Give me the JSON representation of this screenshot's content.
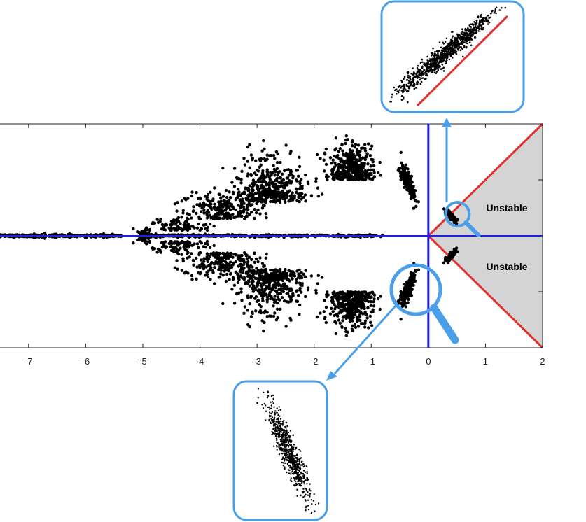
{
  "chart_data": {
    "type": "scatter",
    "title": "",
    "xlabel": "",
    "ylabel": "",
    "xlim": [
      -7.5,
      2
    ],
    "ylim": [
      -2,
      2
    ],
    "x_ticks": [
      -7,
      -6,
      -5,
      -4,
      -3,
      -2,
      -1,
      0,
      1,
      2
    ],
    "x_tick_labels": [
      "-7",
      "-6",
      "-5",
      "-4",
      "-3",
      "-2",
      "-1",
      "0",
      "1",
      "2"
    ],
    "grid": false,
    "annotations": [
      {
        "text": "Unstable",
        "x": 1.55,
        "y": 0.5
      },
      {
        "text": "Unstable",
        "x": 1.55,
        "y": -0.55
      }
    ],
    "unstable_region": {
      "boundary": "|Im| <= Re",
      "x_range": [
        0,
        2
      ],
      "fill_color": "#d4d4d4",
      "edge_color": "#e03030"
    },
    "reference_lines": {
      "color": "#2020e0",
      "vertical_x": 0,
      "horizontal_y": 0
    },
    "clusters": [
      {
        "cx": -7.15,
        "cy": 0,
        "sx": 0.35,
        "sy": 0.0,
        "n": 160,
        "shape": "line"
      },
      {
        "cx": -6.0,
        "cy": 0,
        "sx": 0.55,
        "sy": 0.0,
        "n": 120,
        "shape": "line"
      },
      {
        "cx": -4.5,
        "cy": 0,
        "sx": 0.55,
        "sy": 0.0,
        "n": 140,
        "shape": "line"
      },
      {
        "cx": -3.2,
        "cy": 0,
        "sx": 0.9,
        "sy": 0.0,
        "n": 160,
        "shape": "line"
      },
      {
        "cx": -1.6,
        "cy": 0,
        "sx": 0.8,
        "sy": 0.0,
        "n": 120,
        "shape": "line"
      },
      {
        "cx": -6.2,
        "cy": 0,
        "sx": 0.6,
        "sy": 0.02,
        "n": 30,
        "shape": "blob"
      },
      {
        "cx": -5.0,
        "cy": 0,
        "sx": 0.06,
        "sy": 0.05,
        "n": 30,
        "shape": "blob"
      },
      {
        "cx": -4.35,
        "cy": 0.1,
        "sx": 0.28,
        "sy": 0.12,
        "n": 100,
        "shape": "wing"
      },
      {
        "cx": -3.6,
        "cy": 0.3,
        "sx": 0.32,
        "sy": 0.25,
        "n": 240,
        "shape": "wing"
      },
      {
        "cx": -2.75,
        "cy": 0.6,
        "sx": 0.3,
        "sy": 0.35,
        "n": 420,
        "shape": "wing"
      },
      {
        "cx": -1.35,
        "cy": 1.0,
        "sx": 0.18,
        "sy": 0.3,
        "n": 380,
        "shape": "wing"
      },
      {
        "cx": -0.35,
        "cy": 0.95,
        "sx": 0.1,
        "sy": 0.15,
        "n": 220,
        "shape": "tilted"
      },
      {
        "cx": 0.4,
        "cy": 0.35,
        "sx": 0.06,
        "sy": 0.05,
        "n": 80,
        "shape": "tilted"
      }
    ],
    "zoom_insets": [
      {
        "target": {
          "x": 0.35,
          "y": 0.35
        },
        "contains_reference_line": true,
        "reference_line_color": "#e03030",
        "points": 900
      },
      {
        "target": {
          "x": -0.3,
          "y": -0.9
        },
        "contains_reference_line": false,
        "points": 700
      }
    ],
    "highlight_color": "#4a9fe8"
  }
}
